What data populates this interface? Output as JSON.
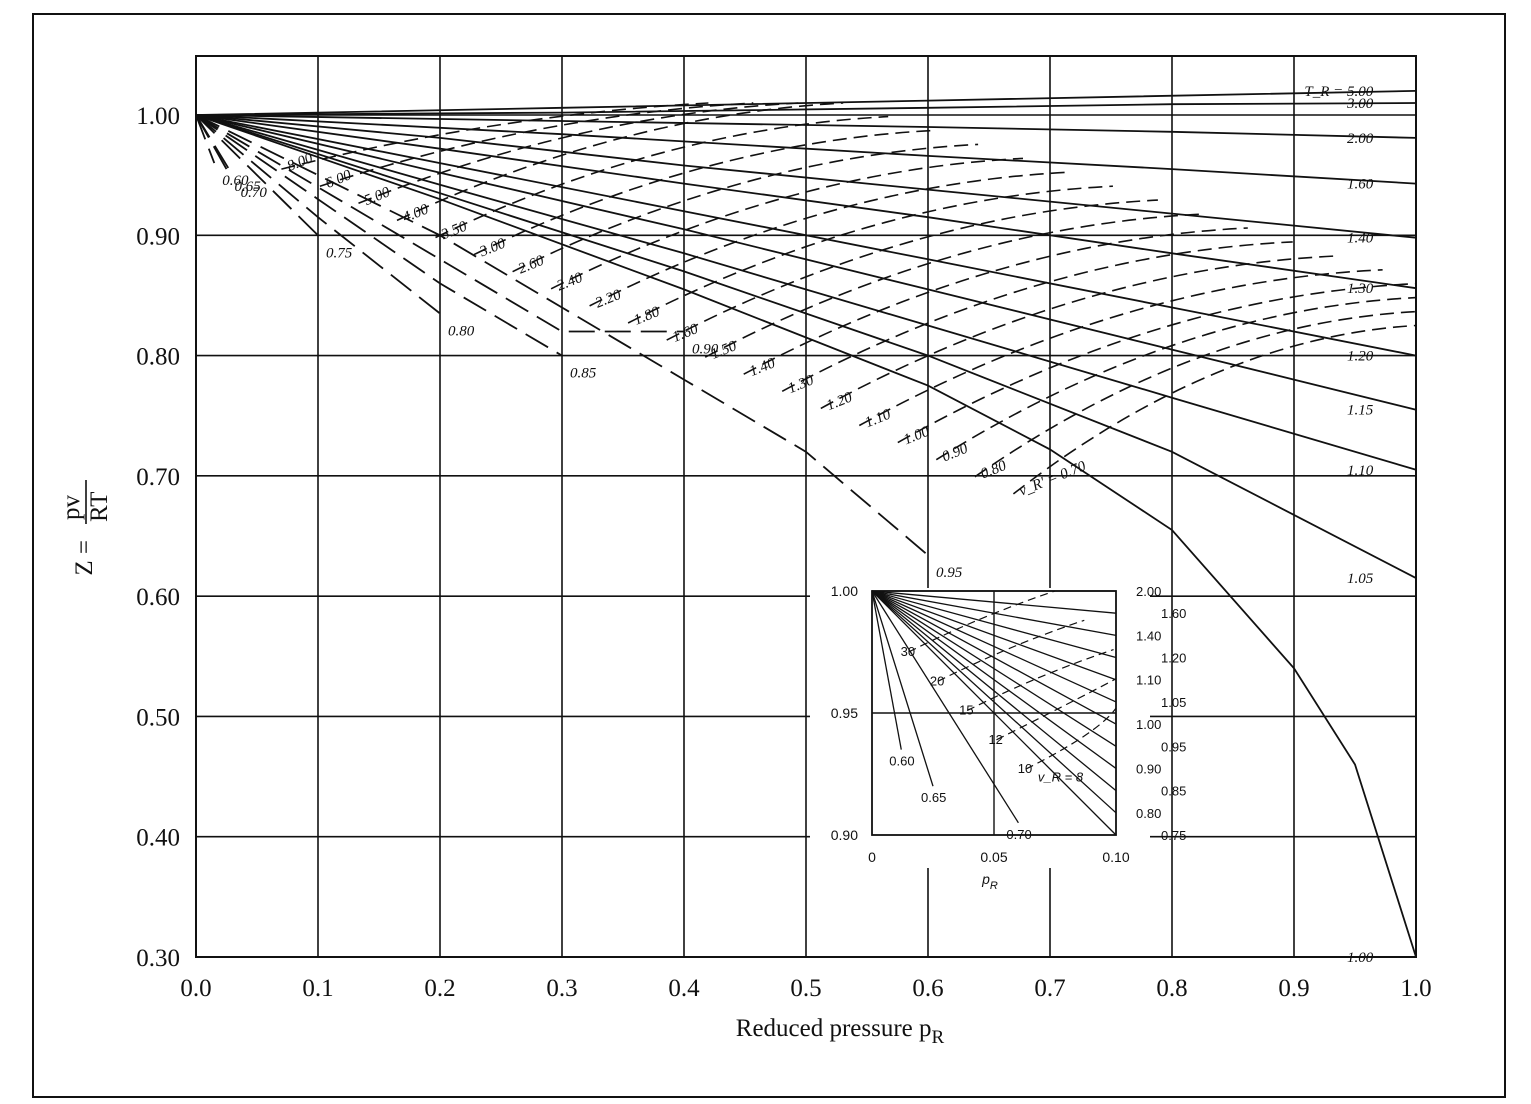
{
  "chart_data": [
    {
      "type": "line",
      "title": "",
      "xlabel_main": "Reduced pressure p",
      "xlabel_sub": "R",
      "ylabel_left": "Z = ",
      "ylabel_num": "pv",
      "ylabel_den": "RT",
      "xlim": [
        0.0,
        1.0
      ],
      "ylim": [
        0.3,
        1.05
      ],
      "x_ticks": [
        "0.0",
        "0.1",
        "0.2",
        "0.3",
        "0.4",
        "0.5",
        "0.6",
        "0.7",
        "0.8",
        "0.9",
        "1.0"
      ],
      "y_ticks": [
        "1.00",
        "0.90",
        "0.80",
        "0.70",
        "0.60",
        "0.50",
        "0.40",
        "0.30"
      ],
      "y_tick_values": [
        1.0,
        0.9,
        0.8,
        0.7,
        0.6,
        0.5,
        0.4,
        0.3
      ],
      "grid": true,
      "isotherms_TR": [
        {
          "label": "T_R = 5.00",
          "points": [
            [
              0,
              1.0
            ],
            [
              0.3,
              1.006
            ],
            [
              0.6,
              1.012
            ],
            [
              1.0,
              1.02
            ]
          ]
        },
        {
          "label": "3.00",
          "points": [
            [
              0,
              1.0
            ],
            [
              0.3,
              1.002
            ],
            [
              0.6,
              1.006
            ],
            [
              0.8,
              1.009
            ],
            [
              1.0,
              1.01
            ]
          ]
        },
        {
          "label": "2.00",
          "points": [
            [
              0,
              1.0
            ],
            [
              0.3,
              0.995
            ],
            [
              0.6,
              0.99
            ],
            [
              0.8,
              0.986
            ],
            [
              1.0,
              0.981
            ]
          ]
        },
        {
          "label": "1.60",
          "points": [
            [
              0,
              1.0
            ],
            [
              0.3,
              0.984
            ],
            [
              0.6,
              0.966
            ],
            [
              0.8,
              0.955
            ],
            [
              1.0,
              0.943
            ]
          ]
        },
        {
          "label": "1.40",
          "points": [
            [
              0,
              1.0
            ],
            [
              0.2,
              0.981
            ],
            [
              0.4,
              0.958
            ],
            [
              0.6,
              0.938
            ],
            [
              0.8,
              0.918
            ],
            [
              1.0,
              0.898
            ]
          ]
        },
        {
          "label": "1.30",
          "points": [
            [
              0,
              1.0
            ],
            [
              0.2,
              0.972
            ],
            [
              0.4,
              0.943
            ],
            [
              0.6,
              0.915
            ],
            [
              0.8,
              0.885
            ],
            [
              1.0,
              0.856
            ]
          ]
        },
        {
          "label": "1.20",
          "points": [
            [
              0,
              1.0
            ],
            [
              0.2,
              0.96
            ],
            [
              0.4,
              0.92
            ],
            [
              0.6,
              0.88
            ],
            [
              0.8,
              0.84
            ],
            [
              1.0,
              0.8
            ]
          ]
        },
        {
          "label": "1.15",
          "points": [
            [
              0,
              1.0
            ],
            [
              0.2,
              0.952
            ],
            [
              0.4,
              0.905
            ],
            [
              0.6,
              0.855
            ],
            [
              0.8,
              0.805
            ],
            [
              1.0,
              0.755
            ]
          ]
        },
        {
          "label": "1.10",
          "points": [
            [
              0,
              1.0
            ],
            [
              0.2,
              0.942
            ],
            [
              0.4,
              0.885
            ],
            [
              0.6,
              0.825
            ],
            [
              0.8,
              0.765
            ],
            [
              1.0,
              0.705
            ]
          ]
        },
        {
          "label": "1.05",
          "points": [
            [
              0,
              1.0
            ],
            [
              0.2,
              0.935
            ],
            [
              0.4,
              0.87
            ],
            [
              0.6,
              0.8
            ],
            [
              0.8,
              0.72
            ],
            [
              1.0,
              0.615
            ]
          ]
        },
        {
          "label": "1.00",
          "points": [
            [
              0,
              1.0
            ],
            [
              0.2,
              0.93
            ],
            [
              0.4,
              0.855
            ],
            [
              0.6,
              0.775
            ],
            [
              0.7,
              0.722
            ],
            [
              0.8,
              0.655
            ],
            [
              0.9,
              0.54
            ],
            [
              0.95,
              0.46
            ],
            [
              1.0,
              0.3
            ]
          ]
        },
        {
          "label": "0.95",
          "points": [
            [
              0,
              1.0
            ],
            [
              0.1,
              0.95
            ],
            [
              0.2,
              0.9
            ],
            [
              0.3,
              0.84
            ],
            [
              0.4,
              0.78
            ],
            [
              0.5,
              0.72
            ],
            [
              0.6,
              0.634
            ]
          ]
        },
        {
          "label": "0.90",
          "points": [
            [
              0,
              1.0
            ],
            [
              0.1,
              0.94
            ],
            [
              0.2,
              0.88
            ],
            [
              0.3,
              0.82
            ],
            [
              0.4,
              0.82
            ]
          ]
        },
        {
          "label": "0.85",
          "points": [
            [
              0,
              1.0
            ],
            [
              0.1,
              0.93
            ],
            [
              0.2,
              0.86
            ],
            [
              0.3,
              0.8
            ]
          ]
        },
        {
          "label": "0.80",
          "points": [
            [
              0,
              1.0
            ],
            [
              0.1,
              0.915
            ],
            [
              0.2,
              0.835
            ]
          ]
        },
        {
          "label": "0.75",
          "points": [
            [
              0,
              1.0
            ],
            [
              0.05,
              0.95
            ],
            [
              0.1,
              0.9
            ]
          ]
        },
        {
          "label": "0.70",
          "points": [
            [
              0,
              1.0
            ],
            [
              0.03,
              0.95
            ]
          ]
        },
        {
          "label": "0.65",
          "points": [
            [
              0,
              1.0
            ],
            [
              0.025,
              0.955
            ]
          ]
        },
        {
          "label": "0.60",
          "points": [
            [
              0,
              1.0
            ],
            [
              0.015,
              0.96
            ]
          ]
        }
      ],
      "isochores_vR": [
        {
          "label": "8.00"
        },
        {
          "label": "6.00"
        },
        {
          "label": "5.00"
        },
        {
          "label": "4.00"
        },
        {
          "label": "3.50"
        },
        {
          "label": "3.00"
        },
        {
          "label": "2.60"
        },
        {
          "label": "2.40"
        },
        {
          "label": "2.20"
        },
        {
          "label": "1.80"
        },
        {
          "label": "1.60"
        },
        {
          "label": "1.50"
        },
        {
          "label": "1.40"
        },
        {
          "label": "1.30"
        },
        {
          "label": "1.20"
        },
        {
          "label": "1.10"
        },
        {
          "label": "1.00"
        },
        {
          "label": "0.90"
        },
        {
          "label": "0.80"
        },
        {
          "label": "v_R' = 0.70"
        }
      ],
      "annotations": [
        "T_R = 5.00",
        "T_R = 1.00",
        "v_R' = 0.70"
      ],
      "inset": {
        "xlabel_main": "p",
        "xlabel_sub": "R",
        "xlim": [
          0,
          0.1
        ],
        "ylim": [
          0.9,
          1.0
        ],
        "x_ticks": [
          "0",
          "0.05",
          "0.10"
        ],
        "y_ticks": [
          "1.00",
          "0.95",
          "0.90"
        ],
        "TR_labels_right": [
          "2.00",
          "1.60",
          "1.40",
          "1.20",
          "1.10",
          "1.05",
          "1.00",
          "0.95",
          "0.90",
          "0.85",
          "0.80",
          "0.75"
        ],
        "TR_labels_bottom": [
          "0.60",
          "0.65",
          "0.70"
        ],
        "vR_labels": [
          "30",
          "20",
          "15",
          "12",
          "10"
        ],
        "vR_annotation": "v_R = 8"
      }
    }
  ]
}
